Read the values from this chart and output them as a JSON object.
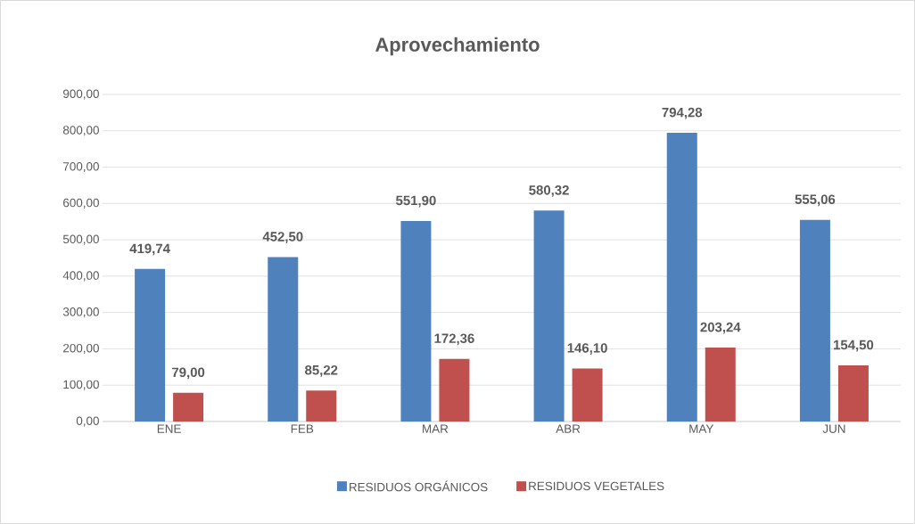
{
  "chart_data": {
    "type": "bar",
    "title": "Aprovechamiento",
    "categories": [
      "ENE",
      "FEB",
      "MAR",
      "ABR",
      "MAY",
      "JUN"
    ],
    "series": [
      {
        "name": "RESIDUOS ORGÁNICOS",
        "color": "#4f81bd",
        "values": [
          419.74,
          452.5,
          551.9,
          580.32,
          794.28,
          555.06
        ],
        "value_labels": [
          "419,74",
          "452,50",
          "551,90",
          "580,32",
          "794,28",
          "555,06"
        ]
      },
      {
        "name": "RESIDUOS VEGETALES",
        "color": "#c0504d",
        "values": [
          79.0,
          85.22,
          172.36,
          146.1,
          203.24,
          154.5
        ],
        "value_labels": [
          "79,00",
          "85,22",
          "172,36",
          "146,10",
          "203,24",
          "154,50"
        ]
      }
    ],
    "ylim": [
      0,
      900
    ],
    "yticks": [
      {
        "value": 0,
        "label": "0,00"
      },
      {
        "value": 100,
        "label": "100,00"
      },
      {
        "value": 200,
        "label": "200,00"
      },
      {
        "value": 300,
        "label": "300,00"
      },
      {
        "value": 400,
        "label": "400,00"
      },
      {
        "value": 500,
        "label": "500,00"
      },
      {
        "value": 600,
        "label": "600,00"
      },
      {
        "value": 700,
        "label": "700,00"
      },
      {
        "value": 800,
        "label": "800,00"
      },
      {
        "value": 900,
        "label": "900,00"
      }
    ],
    "grid": "y",
    "legend": "bottom"
  }
}
